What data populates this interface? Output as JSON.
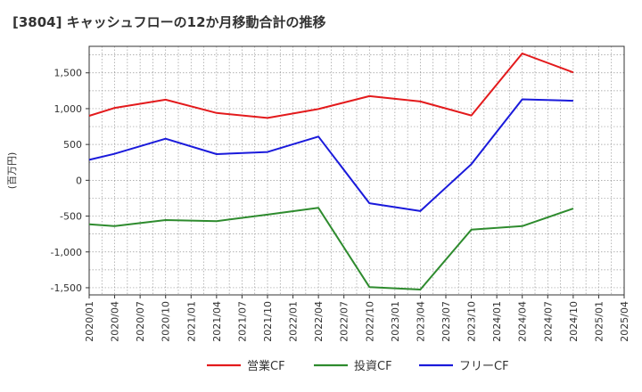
{
  "chart_data": {
    "type": "line",
    "title": "[3804]  キャッシュフローの12か月移動合計の推移",
    "ylabel": "(百万円)",
    "xlabel": "",
    "ylim": [
      -1600,
      1870
    ],
    "yticks": [
      -1500,
      -1000,
      -500,
      0,
      500,
      1000,
      1500
    ],
    "ytick_labels": [
      "-1,500",
      "-1,000",
      "-500",
      "0",
      "500",
      "1,000",
      "1,500"
    ],
    "categories": [
      "2020/01",
      "2020/04",
      "2020/07",
      "2020/10",
      "2021/01",
      "2021/04",
      "2021/07",
      "2021/10",
      "2022/01",
      "2022/04",
      "2022/07",
      "2022/10",
      "2023/01",
      "2023/04",
      "2023/07",
      "2023/10",
      "2024/01",
      "2024/04",
      "2024/07",
      "2024/10",
      "2025/01",
      "2025/04"
    ],
    "grid": true,
    "legend_position": "bottom",
    "series": [
      {
        "name": "営業CF",
        "color": "#e31a1c",
        "points": [
          [
            0,
            900
          ],
          [
            1,
            1010
          ],
          [
            3,
            1125
          ],
          [
            5,
            940
          ],
          [
            7,
            870
          ],
          [
            9,
            995
          ],
          [
            11,
            1175
          ],
          [
            13,
            1100
          ],
          [
            15,
            905
          ],
          [
            17,
            1770
          ],
          [
            19,
            1505
          ]
        ]
      },
      {
        "name": "投資CF",
        "color": "#2e8b2e",
        "points": [
          [
            0,
            -615
          ],
          [
            1,
            -640
          ],
          [
            3,
            -555
          ],
          [
            5,
            -570
          ],
          [
            7,
            -480
          ],
          [
            9,
            -385
          ],
          [
            11,
            -1490
          ],
          [
            13,
            -1525
          ],
          [
            15,
            -690
          ],
          [
            17,
            -640
          ],
          [
            19,
            -395
          ]
        ]
      },
      {
        "name": "フリーCF",
        "color": "#1a1adb",
        "points": [
          [
            0,
            285
          ],
          [
            1,
            370
          ],
          [
            3,
            580
          ],
          [
            5,
            365
          ],
          [
            7,
            395
          ],
          [
            9,
            610
          ],
          [
            11,
            -320
          ],
          [
            13,
            -430
          ],
          [
            15,
            225
          ],
          [
            17,
            1130
          ],
          [
            19,
            1110
          ]
        ]
      }
    ]
  }
}
